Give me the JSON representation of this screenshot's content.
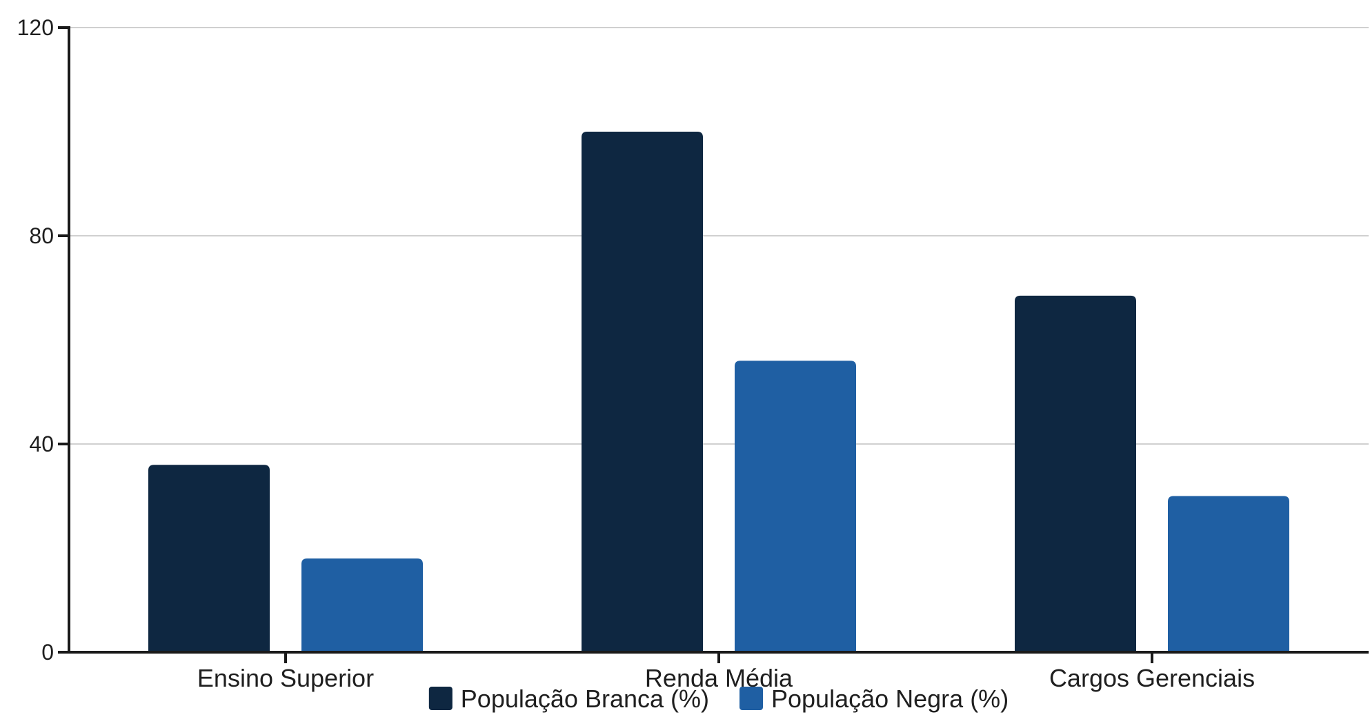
{
  "chart_data": {
    "type": "bar",
    "categories": [
      "Ensino Superior",
      "Renda Média",
      "Cargos Gerenciais"
    ],
    "series": [
      {
        "name": "População Branca (%)",
        "values": [
          36,
          100,
          68.5
        ],
        "color": "#0e2741"
      },
      {
        "name": "População Negra (%)",
        "values": [
          18,
          56,
          30
        ],
        "color": "#1f5fa3"
      }
    ],
    "ylim": [
      0,
      120
    ],
    "yticks": [
      0,
      40,
      80,
      120
    ],
    "grid": true,
    "legend_position": "bottom-center"
  }
}
